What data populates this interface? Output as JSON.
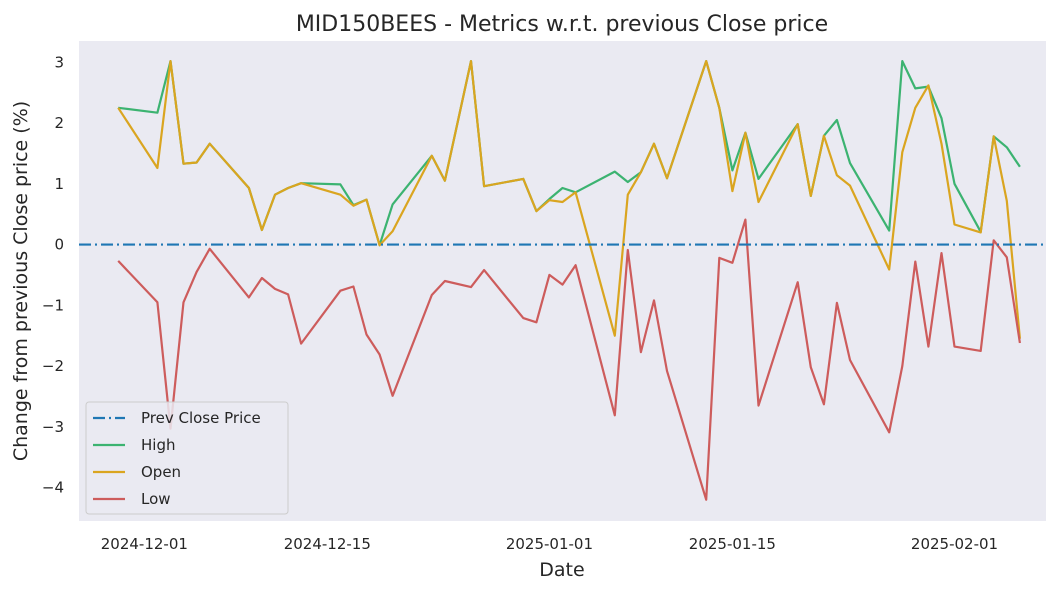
{
  "chart_data": {
    "type": "line",
    "title": "MID150BEES - Metrics w.r.t. previous Close price",
    "xlabel": "Date",
    "ylabel": "Change from previous Close price (%)",
    "xlim": [
      "2024-11-26",
      "2025-02-08"
    ],
    "ylim": [
      -4.55,
      3.35
    ],
    "grid": false,
    "background": "#eaeaf2",
    "legend_position": "lower-left",
    "x_ticks": [
      "2024-12-01",
      "2024-12-15",
      "2025-01-01",
      "2025-01-15",
      "2025-02-01"
    ],
    "y_ticks": [
      -4,
      -3,
      -2,
      -1,
      0,
      1,
      2,
      3
    ],
    "y_tick_labels": [
      "−4",
      "−3",
      "−2",
      "−1",
      "0",
      "1",
      "2",
      "3"
    ],
    "x": [
      "2024-11-29",
      "2024-12-02",
      "2024-12-03",
      "2024-12-04",
      "2024-12-05",
      "2024-12-06",
      "2024-12-09",
      "2024-12-10",
      "2024-12-11",
      "2024-12-12",
      "2024-12-13",
      "2024-12-16",
      "2024-12-17",
      "2024-12-18",
      "2024-12-19",
      "2024-12-20",
      "2024-12-23",
      "2024-12-24",
      "2024-12-26",
      "2024-12-27",
      "2024-12-30",
      "2024-12-31",
      "2025-01-01",
      "2025-01-02",
      "2025-01-03",
      "2025-01-06",
      "2025-01-07",
      "2025-01-08",
      "2025-01-09",
      "2025-01-10",
      "2025-01-13",
      "2025-01-14",
      "2025-01-15",
      "2025-01-16",
      "2025-01-17",
      "2025-01-20",
      "2025-01-21",
      "2025-01-22",
      "2025-01-23",
      "2025-01-24",
      "2025-01-27",
      "2025-01-28",
      "2025-01-29",
      "2025-01-30",
      "2025-01-31",
      "2025-02-01",
      "2025-02-03",
      "2025-02-04",
      "2025-02-05",
      "2025-02-06",
      "2025-02-07"
    ],
    "series": [
      {
        "name": "Prev Close Price",
        "color": "#1f77b4",
        "style": "dashdot",
        "constant": 0
      },
      {
        "name": "High",
        "color": "#3cb371",
        "style": "solid",
        "values": [
          2.25,
          2.17,
          3.02,
          1.33,
          1.35,
          1.66,
          0.93,
          0.24,
          0.82,
          0.93,
          1.01,
          0.99,
          0.65,
          0.74,
          -0.01,
          0.66,
          1.46,
          1.05,
          3.02,
          0.96,
          1.08,
          0.55,
          0.75,
          0.93,
          0.86,
          1.2,
          1.03,
          1.19,
          1.66,
          1.09,
          3.02,
          2.25,
          1.22,
          1.84,
          1.08,
          1.98,
          0.8,
          1.79,
          2.05,
          1.34,
          0.23,
          3.02,
          2.57,
          2.6,
          2.08,
          1.0,
          0.21,
          1.78,
          1.6,
          1.28,
          null
        ]
      },
      {
        "name": "Open",
        "color": "#daa520",
        "style": "solid",
        "values": [
          2.25,
          1.26,
          3.02,
          1.33,
          1.35,
          1.66,
          0.93,
          0.24,
          0.82,
          0.93,
          1.01,
          0.82,
          0.64,
          0.74,
          -0.01,
          0.22,
          1.46,
          1.05,
          3.02,
          0.96,
          1.08,
          0.55,
          0.73,
          0.7,
          0.86,
          -1.5,
          0.82,
          1.19,
          1.66,
          1.09,
          3.02,
          2.25,
          0.88,
          1.84,
          0.7,
          1.98,
          0.8,
          1.79,
          1.14,
          0.97,
          -0.41,
          1.52,
          2.25,
          2.62,
          1.66,
          0.33,
          0.2,
          1.78,
          0.72,
          -1.55,
          null
        ]
      },
      {
        "name": "Low",
        "color": "#cd5c5c",
        "style": "solid",
        "values": [
          -0.27,
          -0.95,
          -3.03,
          -0.95,
          -0.45,
          -0.07,
          -0.87,
          -0.55,
          -0.73,
          -0.82,
          -1.63,
          -0.76,
          -0.69,
          -1.48,
          -1.81,
          -2.49,
          -0.83,
          -0.6,
          -0.7,
          -0.42,
          -1.21,
          -1.28,
          -0.5,
          -0.66,
          -0.34,
          -2.81,
          -0.09,
          -1.77,
          -0.92,
          -2.08,
          -4.2,
          -0.22,
          -0.3,
          0.41,
          -2.65,
          -0.62,
          -2.02,
          -2.63,
          -0.96,
          -1.9,
          -3.09,
          -2.0,
          -0.28,
          -1.68,
          -0.14,
          -1.68,
          -1.75,
          0.07,
          -0.21,
          -1.62,
          null
        ]
      }
    ]
  }
}
